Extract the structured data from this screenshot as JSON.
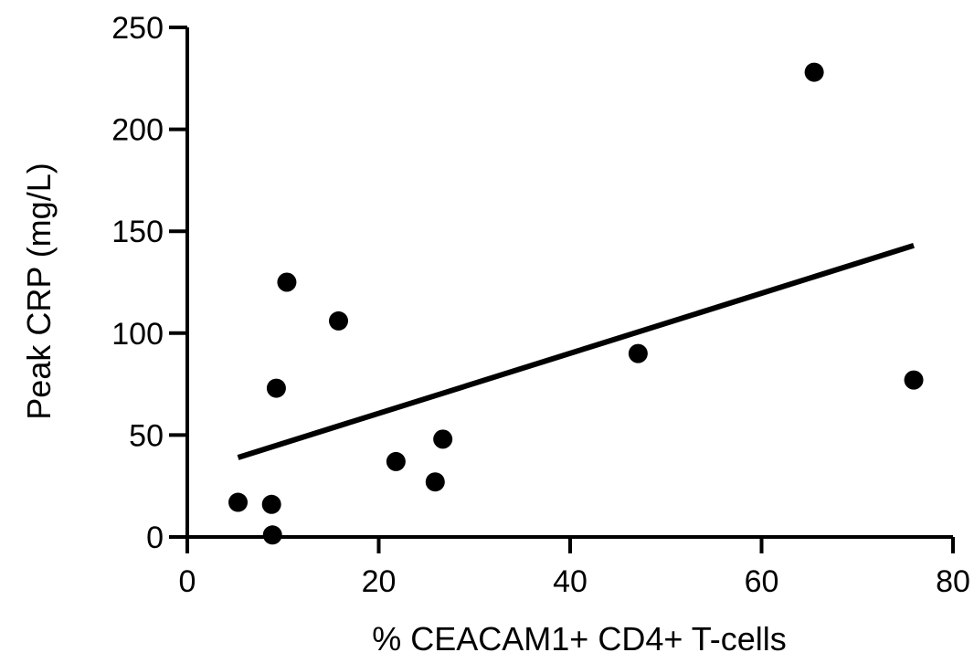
{
  "chart_data": {
    "type": "scatter",
    "xlabel": "% CEACAM1+ CD4+ T-cells",
    "ylabel": "Peak CRP (mg/L)",
    "xlim": [
      0,
      80
    ],
    "ylim": [
      0,
      250
    ],
    "xticks": [
      0,
      20,
      40,
      60,
      80
    ],
    "yticks": [
      0,
      50,
      100,
      150,
      200,
      250
    ],
    "grid": false,
    "points": [
      {
        "x": 5.3,
        "y": 17
      },
      {
        "x": 8.8,
        "y": 16
      },
      {
        "x": 8.9,
        "y": 1
      },
      {
        "x": 9.3,
        "y": 73
      },
      {
        "x": 10.4,
        "y": 125
      },
      {
        "x": 15.8,
        "y": 106
      },
      {
        "x": 21.8,
        "y": 37
      },
      {
        "x": 25.9,
        "y": 27
      },
      {
        "x": 26.7,
        "y": 48
      },
      {
        "x": 47.1,
        "y": 90
      },
      {
        "x": 65.5,
        "y": 228
      },
      {
        "x": 75.9,
        "y": 77
      }
    ],
    "fit_line": {
      "x": [
        5.3,
        75.9
      ],
      "y": [
        39,
        143
      ]
    }
  }
}
